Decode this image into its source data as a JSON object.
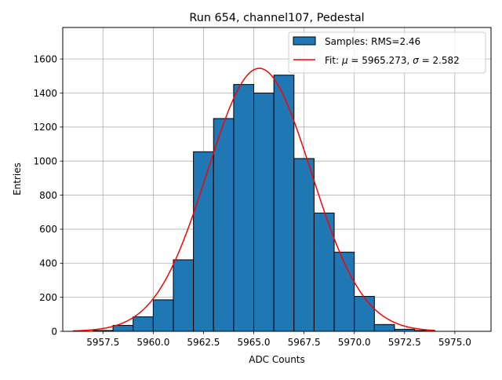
{
  "chart_data": {
    "type": "histogram",
    "title": "Run 654, channel107, Pedestal",
    "xlabel": "ADC Counts",
    "ylabel": "Entries",
    "xlim": [
      5955.5,
      5976.8
    ],
    "ylim": [
      0,
      1785
    ],
    "grid": true,
    "legend_position": "top-right",
    "x_ticks": [
      5957.5,
      5960.0,
      5962.5,
      5965.0,
      5967.5,
      5970.0,
      5972.5,
      5975.0
    ],
    "x_tick_labels": [
      "5957.5",
      "5960.0",
      "5962.5",
      "5965.0",
      "5967.5",
      "5970.0",
      "5972.5",
      "5975.0"
    ],
    "y_ticks": [
      0,
      200,
      400,
      600,
      800,
      1000,
      1200,
      1400,
      1600
    ],
    "y_tick_labels": [
      "0",
      "200",
      "400",
      "600",
      "800",
      "1000",
      "1200",
      "1400",
      "1600"
    ],
    "histogram": {
      "name": "Samples: RMS=2.46",
      "color": "#1f77b4",
      "edge_color": "#000000",
      "bins": [
        {
          "left": 5957.0,
          "right": 5958.0,
          "count": 5
        },
        {
          "left": 5958.0,
          "right": 5959.0,
          "count": 35
        },
        {
          "left": 5959.0,
          "right": 5960.0,
          "count": 85
        },
        {
          "left": 5960.0,
          "right": 5961.0,
          "count": 185
        },
        {
          "left": 5961.0,
          "right": 5962.0,
          "count": 420
        },
        {
          "left": 5962.0,
          "right": 5963.0,
          "count": 1055
        },
        {
          "left": 5963.0,
          "right": 5964.0,
          "count": 1250
        },
        {
          "left": 5964.0,
          "right": 5965.0,
          "count": 1450
        },
        {
          "left": 5965.0,
          "right": 5966.0,
          "count": 1400
        },
        {
          "left": 5966.0,
          "right": 5967.0,
          "count": 1505
        },
        {
          "left": 5967.0,
          "right": 5968.0,
          "count": 1015
        },
        {
          "left": 5968.0,
          "right": 5969.0,
          "count": 695
        },
        {
          "left": 5969.0,
          "right": 5970.0,
          "count": 465
        },
        {
          "left": 5970.0,
          "right": 5971.0,
          "count": 205
        },
        {
          "left": 5971.0,
          "right": 5972.0,
          "count": 40
        },
        {
          "left": 5972.0,
          "right": 5973.0,
          "count": 12
        },
        {
          "left": 5973.0,
          "right": 5974.0,
          "count": 5
        }
      ]
    },
    "fit": {
      "type": "gaussian",
      "color": "#ff0000",
      "mu": 5965.273,
      "sigma": 2.582,
      "amplitude": 1545,
      "x_range": [
        5956.0,
        5974.0
      ],
      "legend_prefix": "Fit: ",
      "mu_symbol": "μ",
      "mu_text": " = 5965.273, ",
      "sigma_symbol": "σ",
      "sigma_text": " = 2.582"
    }
  }
}
